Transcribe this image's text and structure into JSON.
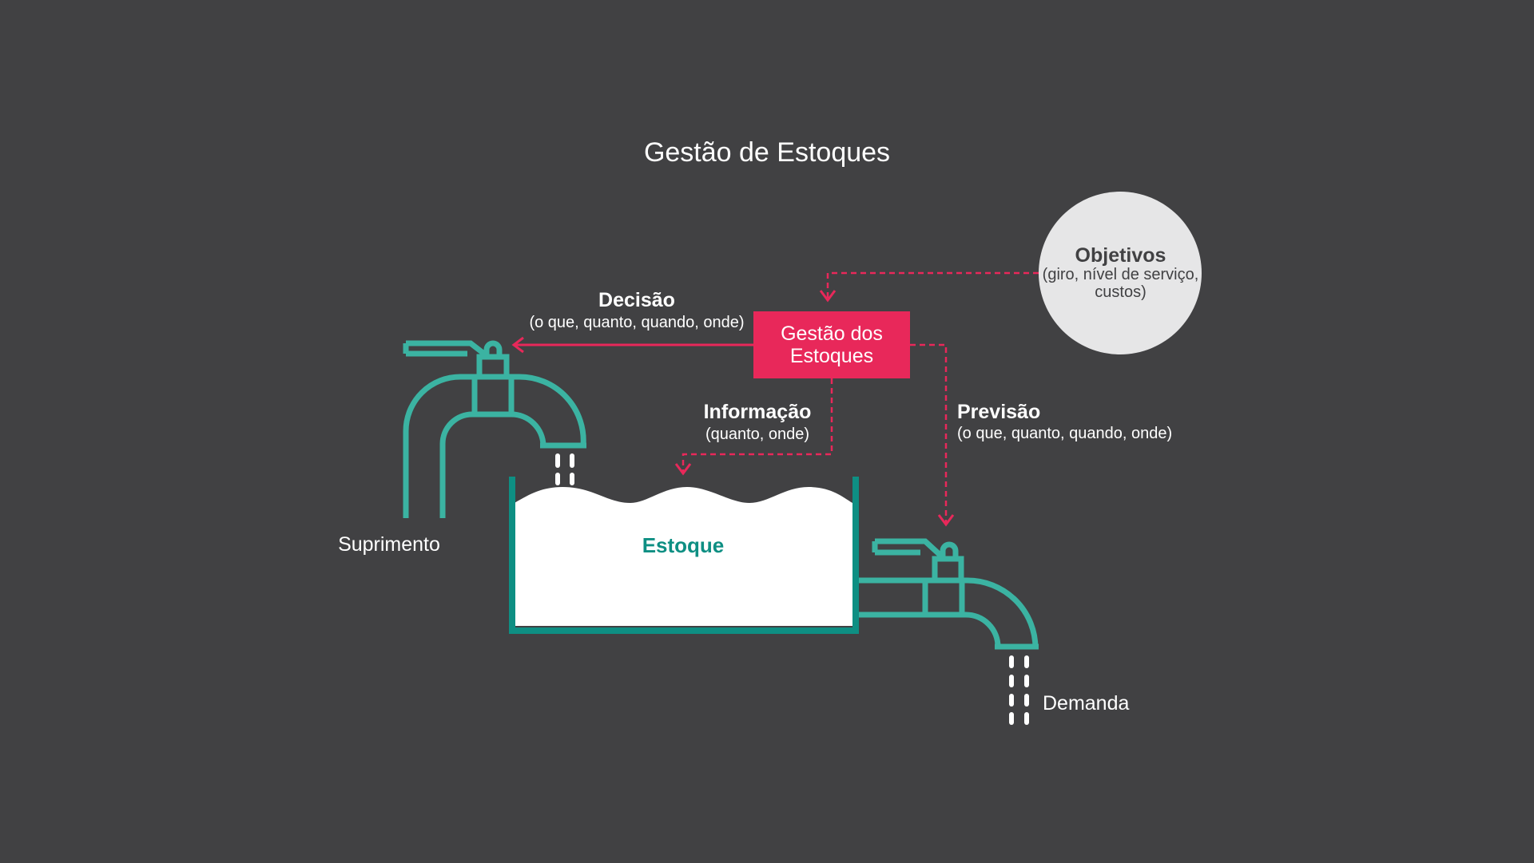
{
  "title": "Gestão de Estoques",
  "gestao": "Gestão dos Estoques",
  "objetivos": {
    "title": "Objetivos",
    "detail": "(giro, nível de serviço, custos)"
  },
  "decisao": {
    "title": "Decisão",
    "detail": "(o que, quanto, quando, onde)"
  },
  "informacao": {
    "title": "Informação",
    "detail": "(quanto, onde)"
  },
  "previsao": {
    "title": "Previsão",
    "detail": "(o que, quanto, quando, onde)"
  },
  "estoque": "Estoque",
  "suprimento": "Suprimento",
  "demanda": "Demanda",
  "colors": {
    "background": "#414143",
    "teal": "#3bb3a2",
    "tank_border": "#0e8f83",
    "accent": "#e8285a",
    "circle": "#e6e6e7"
  }
}
